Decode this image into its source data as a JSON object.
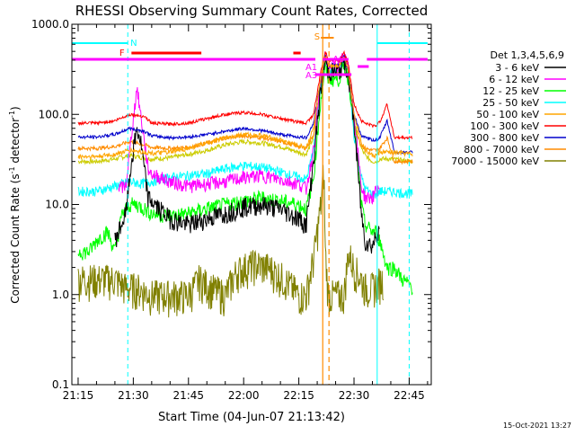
{
  "chart_data": {
    "type": "line",
    "title": "RHESSI Observing Summary Count Rates, Corrected",
    "xlabel": "Start Time (04-Jun-07 21:13:42)",
    "ylabel_main": "Corrected Count Rate (s",
    "ylabel_sup1": "-1",
    "ylabel_mid": " detector",
    "ylabel_sup2": "-1",
    "ylabel_end": ")",
    "y_scale": "log",
    "ylim": [
      0.1,
      1000
    ],
    "xlim_minutes_from_2115": [
      -1.7,
      96
    ],
    "x_ticks": [
      {
        "m": 0,
        "label": "21:15"
      },
      {
        "m": 15,
        "label": "21:30"
      },
      {
        "m": 30,
        "label": "21:45"
      },
      {
        "m": 45,
        "label": "22:00"
      },
      {
        "m": 60,
        "label": "22:15"
      },
      {
        "m": 75,
        "label": "22:30"
      },
      {
        "m": 90,
        "label": "22:45"
      }
    ],
    "y_ticks": [
      {
        "v": 0.1,
        "label": "0.1"
      },
      {
        "v": 1,
        "label": "1.0"
      },
      {
        "v": 10,
        "label": "10.0"
      },
      {
        "v": 100,
        "label": "100.0"
      },
      {
        "v": 1000,
        "label": "1000.0"
      }
    ],
    "legend": {
      "title": "Det 1,3,4,5,6,9",
      "position": "right"
    },
    "series": [
      {
        "name": "3 - 6 keV",
        "color": "#000000",
        "x": [
          10,
          13,
          14.5,
          16,
          17,
          19,
          22,
          25,
          30,
          35,
          40,
          45,
          50,
          55,
          60,
          62,
          64,
          66,
          67.2,
          68,
          71,
          72.3,
          73.5,
          75,
          77,
          78,
          80,
          81,
          82
        ],
        "y": [
          4,
          8,
          30,
          70,
          50,
          12,
          9,
          7,
          6,
          7,
          8,
          9.5,
          10,
          9,
          7,
          6,
          30,
          200,
          400,
          300,
          300,
          400,
          280,
          80,
          8,
          4,
          3.5,
          4.5,
          6
        ]
      },
      {
        "name": "6 - 12 keV",
        "color": "#ff00ff",
        "x": [
          11,
          13,
          14.5,
          16,
          17,
          19,
          20,
          25,
          30,
          35,
          40,
          45,
          50,
          55,
          60,
          62,
          64,
          66,
          67.2,
          68,
          71,
          72.3,
          73.5,
          75,
          77,
          78,
          80,
          81,
          82
        ],
        "y": [
          15,
          16,
          60,
          200,
          100,
          25,
          22,
          18,
          16,
          17,
          18,
          20,
          21,
          19,
          17,
          15,
          40,
          250,
          450,
          350,
          350,
          450,
          320,
          100,
          16,
          12,
          12,
          14,
          16
        ]
      },
      {
        "name": "12 - 25 keV",
        "color": "#00ff00",
        "x": [
          0,
          3,
          5,
          8,
          10,
          12,
          14,
          16,
          18,
          20,
          25,
          30,
          35,
          40,
          45,
          50,
          55,
          60,
          62,
          64,
          66,
          67.2,
          68,
          71,
          72.3,
          73.5,
          75,
          77,
          78,
          80,
          81,
          82,
          84,
          86,
          88,
          91
        ],
        "y": [
          3,
          3,
          4,
          5,
          3,
          8,
          10,
          10,
          9,
          8,
          7.5,
          8,
          9,
          10,
          11,
          12,
          11,
          10,
          9,
          20,
          150,
          350,
          250,
          250,
          350,
          250,
          90,
          10,
          6,
          5,
          5,
          4,
          2,
          2,
          1.5,
          1.2
        ]
      },
      {
        "name": "25 - 50 keV",
        "color": "#00ffff",
        "x": [
          0,
          5,
          10,
          14,
          17,
          20,
          25,
          30,
          35,
          40,
          45,
          50,
          55,
          60,
          62,
          64,
          66,
          67.2,
          68,
          71,
          72.3,
          73.5,
          75,
          77,
          78,
          80,
          81,
          82,
          85,
          91
        ],
        "y": [
          14,
          14,
          16,
          18,
          17,
          18,
          20,
          21,
          22,
          25,
          27,
          26,
          23,
          20,
          19,
          40,
          200,
          400,
          300,
          300,
          400,
          250,
          60,
          20,
          15,
          13,
          13,
          14,
          14,
          13
        ]
      },
      {
        "name": "50 - 100 keV",
        "color": "#ffa500",
        "x": [
          0,
          5,
          10,
          14,
          18,
          20,
          25,
          30,
          35,
          40,
          45,
          50,
          55,
          60,
          62,
          64,
          66,
          67.2,
          68,
          71,
          72.3,
          73.5,
          75,
          77,
          78,
          80,
          81,
          82,
          85,
          91
        ],
        "y": [
          34,
          34,
          36,
          40,
          38,
          37,
          38,
          42,
          48,
          55,
          60,
          58,
          52,
          45,
          43,
          70,
          250,
          450,
          350,
          350,
          450,
          300,
          100,
          50,
          40,
          35,
          35,
          38,
          38,
          36
        ]
      },
      {
        "name": "100 - 300 keV",
        "color": "#ff0000",
        "x": [
          0,
          5,
          10,
          14,
          18,
          20,
          25,
          30,
          35,
          40,
          45,
          50,
          55,
          60,
          62,
          64,
          66,
          67.2,
          68,
          71,
          72.3,
          73.5,
          75,
          77,
          78,
          80,
          81,
          82,
          84,
          86,
          91
        ],
        "y": [
          80,
          80,
          85,
          100,
          95,
          80,
          78,
          80,
          90,
          100,
          105,
          100,
          90,
          82,
          80,
          100,
          300,
          500,
          400,
          400,
          500,
          350,
          130,
          85,
          80,
          75,
          75,
          82,
          130,
          55,
          55
        ]
      },
      {
        "name": "300 - 800 keV",
        "color": "#0000cc",
        "x": [
          0,
          5,
          10,
          14,
          18,
          20,
          25,
          30,
          35,
          40,
          45,
          50,
          55,
          60,
          62,
          64,
          66,
          67.2,
          68,
          71,
          72.3,
          73.5,
          75,
          77,
          78,
          80,
          81,
          82,
          84,
          86,
          91
        ],
        "y": [
          56,
          56,
          60,
          70,
          65,
          58,
          55,
          56,
          60,
          65,
          70,
          66,
          60,
          56,
          55,
          80,
          250,
          450,
          350,
          350,
          450,
          300,
          100,
          58,
          55,
          52,
          52,
          55,
          85,
          38,
          38
        ]
      },
      {
        "name": "800 - 7000 keV",
        "color": "#ff8c00",
        "x": [
          0,
          5,
          10,
          14,
          18,
          20,
          25,
          30,
          35,
          40,
          45,
          50,
          55,
          60,
          62,
          64,
          66,
          67.2,
          68,
          71,
          72.3,
          73.5,
          75,
          77,
          78,
          80,
          81,
          82,
          84,
          86,
          91
        ],
        "y": [
          42,
          42,
          44,
          50,
          46,
          43,
          42,
          43,
          48,
          55,
          58,
          55,
          50,
          44,
          42,
          60,
          200,
          380,
          300,
          300,
          380,
          250,
          80,
          45,
          42,
          40,
          40,
          42,
          55,
          30,
          30
        ]
      },
      {
        "name": "7000 - 15000 keV",
        "color": "#808000",
        "x": [
          0,
          5,
          10,
          13,
          16,
          20,
          25,
          30,
          33,
          36,
          40,
          43,
          45,
          48,
          52,
          56,
          60,
          62,
          64,
          66,
          66.8,
          67.2,
          68,
          70,
          72.3,
          73.5,
          75,
          77,
          78,
          80,
          83
        ],
        "y": [
          1.5,
          1.5,
          1.5,
          1.2,
          1.2,
          1,
          1,
          1,
          1.5,
          1.2,
          1,
          1.8,
          2,
          2.2,
          2,
          1.5,
          1,
          1,
          2.5,
          10,
          25,
          3,
          1,
          1,
          1,
          3,
          2,
          1.5,
          1.2,
          1.2,
          1.5
        ]
      }
    ],
    "yellow_series": {
      "name": "",
      "color": "#cccc00",
      "x": [
        0,
        5,
        10,
        14,
        18,
        20,
        25,
        30,
        35,
        40,
        45,
        50,
        55,
        60,
        62,
        64,
        66,
        67.2,
        68,
        71,
        72.3,
        73.5,
        75,
        77,
        78,
        80,
        81,
        82,
        85,
        91
      ],
      "y": [
        30,
        30,
        32,
        35,
        33,
        32,
        33,
        36,
        40,
        46,
        50,
        48,
        44,
        38,
        36,
        55,
        200,
        380,
        300,
        300,
        380,
        250,
        80,
        42,
        35,
        30,
        30,
        32,
        32,
        30
      ]
    },
    "annotations": {
      "N": "N",
      "F": "F",
      "S": "S",
      "A0": "A0",
      "A1": "A1",
      "A3": "A3",
      "timestamp": "15-Oct-2021 13:27"
    },
    "grid": false
  }
}
